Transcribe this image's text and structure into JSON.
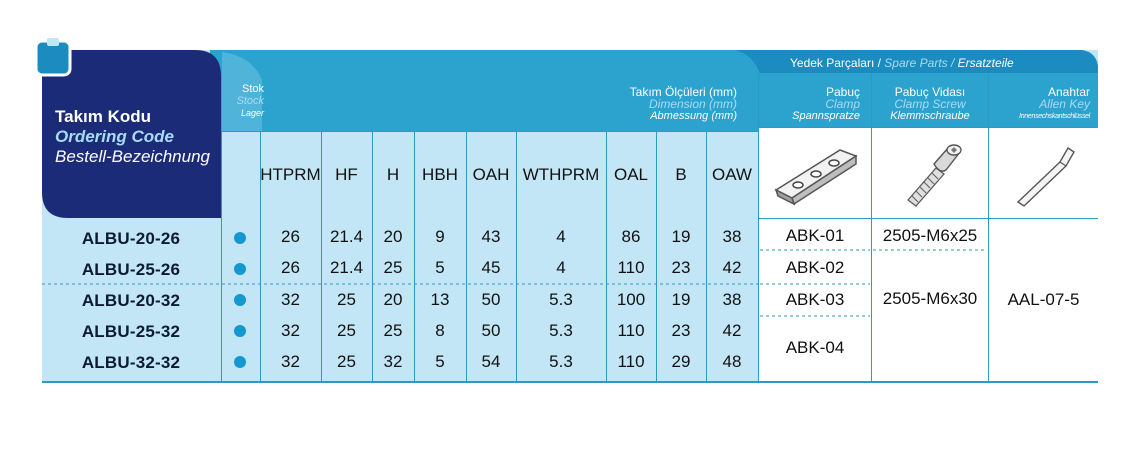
{
  "colors": {
    "dark_blue": "#1c2b78",
    "header_blue": "#2ca2cf",
    "light_blue": "#c2e6f6",
    "pale_blue": "#d8f0fb",
    "dot": "#1598cf"
  },
  "header": {
    "title_tr": "Takım Kodu",
    "title_en": "Ordering Code",
    "title_de": "Bestell-Bezeichnung",
    "stock_tr": "Stok",
    "stock_en": "Stock",
    "stock_de": "Lager",
    "dims_tr": "Takım Ölçüleri (mm)",
    "dims_en": "Dimension (mm)",
    "dims_de": "Abmessung (mm)",
    "spare_tr": "Yedek Parçaları /",
    "spare_en": "Spare Parts /",
    "spare_de": "Ersatzteile",
    "clamp_tr": "Pabuç",
    "clamp_en": "Clamp",
    "clamp_de": "Spannspratze",
    "screw_tr": "Pabuç Vidası",
    "screw_en": "Clamp Screw",
    "screw_de": "Klemmschraube",
    "key_tr": "Anahtar",
    "key_en": "Allen Key",
    "key_de": "Innensechskantschlüssel"
  },
  "columns": [
    "HTPRM",
    "HF",
    "H",
    "HBH",
    "OAH",
    "WTHPRM",
    "OAL",
    "B",
    "OAW"
  ],
  "icons": [
    "clamp-part-icon",
    "clamp-screw-icon",
    "allen-key-icon"
  ],
  "rows": [
    {
      "code": "ALBU-20-26",
      "values": [
        "26",
        "21.4",
        "20",
        "9",
        "43",
        "4",
        "86",
        "19",
        "38"
      ]
    },
    {
      "code": "ALBU-25-26",
      "values": [
        "26",
        "21.4",
        "25",
        "5",
        "45",
        "4",
        "110",
        "23",
        "42"
      ]
    },
    {
      "code": "ALBU-20-32",
      "values": [
        "32",
        "25",
        "20",
        "13",
        "50",
        "5.3",
        "100",
        "19",
        "38"
      ]
    },
    {
      "code": "ALBU-25-32",
      "values": [
        "32",
        "25",
        "25",
        "8",
        "50",
        "5.3",
        "110",
        "23",
        "42"
      ]
    },
    {
      "code": "ALBU-32-32",
      "values": [
        "32",
        "25",
        "32",
        "5",
        "54",
        "5.3",
        "110",
        "29",
        "48"
      ]
    }
  ],
  "spares": {
    "clamp": [
      "ABK-01",
      "ABK-02",
      "ABK-03",
      "ABK-04"
    ],
    "screw": [
      "2505-M6x25",
      "2505-M6x30"
    ],
    "key": "AAL-07-5"
  }
}
